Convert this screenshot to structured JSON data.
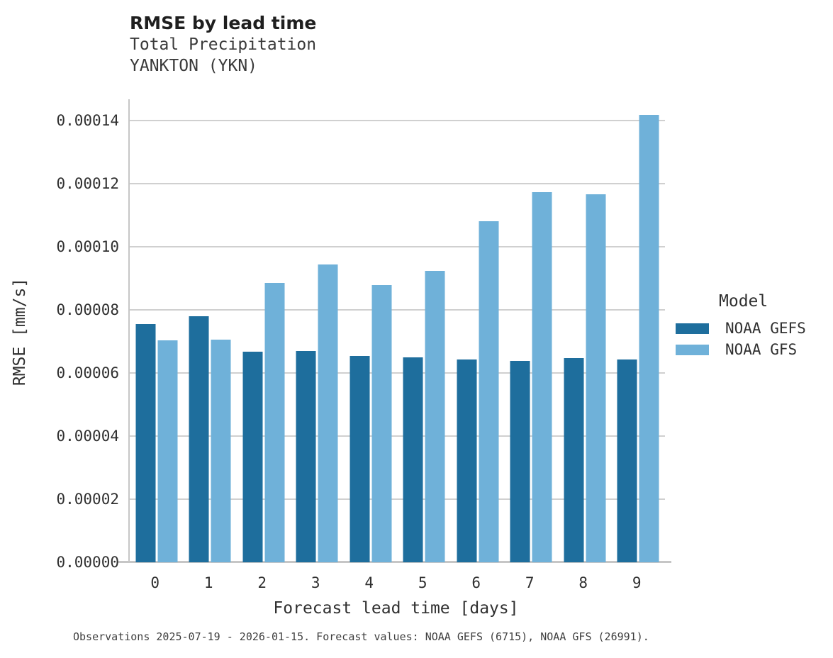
{
  "header": {
    "title": "RMSE by lead time",
    "subtitle1": "Total Precipitation",
    "subtitle2": "YANKTON (YKN)"
  },
  "chart_data": {
    "type": "bar",
    "title": "RMSE by lead time",
    "subtitle": [
      "Total Precipitation",
      "YANKTON (YKN)"
    ],
    "categories": [
      "0",
      "1",
      "2",
      "3",
      "4",
      "5",
      "6",
      "7",
      "8",
      "9"
    ],
    "series": [
      {
        "name": "NOAA GEFS",
        "color": "#1e6e9d",
        "values": [
          7.56e-05,
          7.79e-05,
          6.67e-05,
          6.7e-05,
          6.54e-05,
          6.49e-05,
          6.43e-05,
          6.38e-05,
          6.48e-05,
          6.42e-05
        ]
      },
      {
        "name": "NOAA GFS",
        "color": "#6fb1d9",
        "values": [
          7.03e-05,
          7.06e-05,
          8.86e-05,
          9.43e-05,
          8.78e-05,
          9.23e-05,
          0.0001081,
          0.0001173,
          0.0001166,
          0.0001418
        ]
      }
    ],
    "xlabel": "Forecast lead time [days]",
    "ylabel": "RMSE [mm/s]",
    "ylim": [
      0,
      0.0001467
    ],
    "yticks": [
      0,
      2e-05,
      4e-05,
      6e-05,
      8e-05,
      0.0001,
      0.00012,
      0.00014
    ],
    "ytick_decimals": 5,
    "grid": "horizontal",
    "legend_title": "Model",
    "legend_position": "right",
    "gridline_color": "#d0d0d0",
    "axis_color": "#c6c6c6"
  },
  "caption": "Observations 2025-07-19 - 2026-01-15. Forecast values: NOAA GEFS (6715), NOAA GFS (26991)."
}
